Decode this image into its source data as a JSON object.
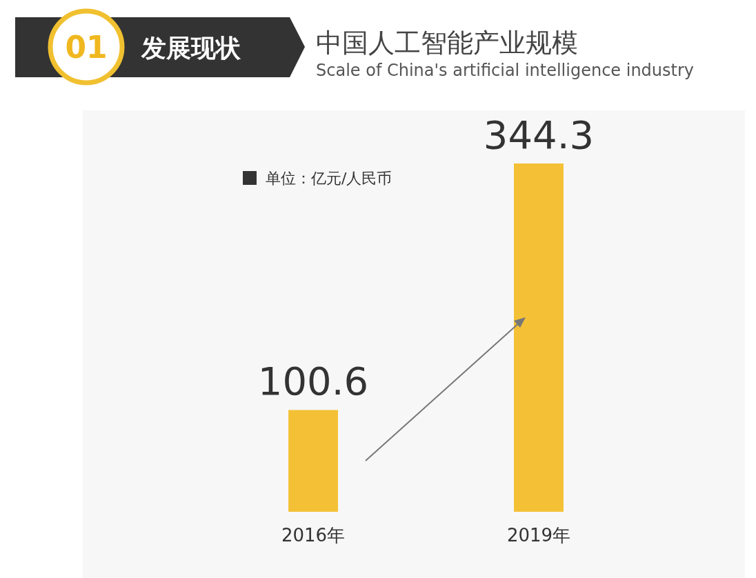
{
  "chart_data": {
    "type": "bar",
    "title": "中国人工智能产业规模",
    "subtitle": "Scale of China's artificial intelligence industry",
    "annotations": [
      "01",
      "发展现状",
      "单位：亿元/人民币"
    ],
    "categories": [
      "2016年",
      "2019年"
    ],
    "values": [
      100.6,
      344.3
    ],
    "color": "#f4c136",
    "data_labels": true
  }
}
